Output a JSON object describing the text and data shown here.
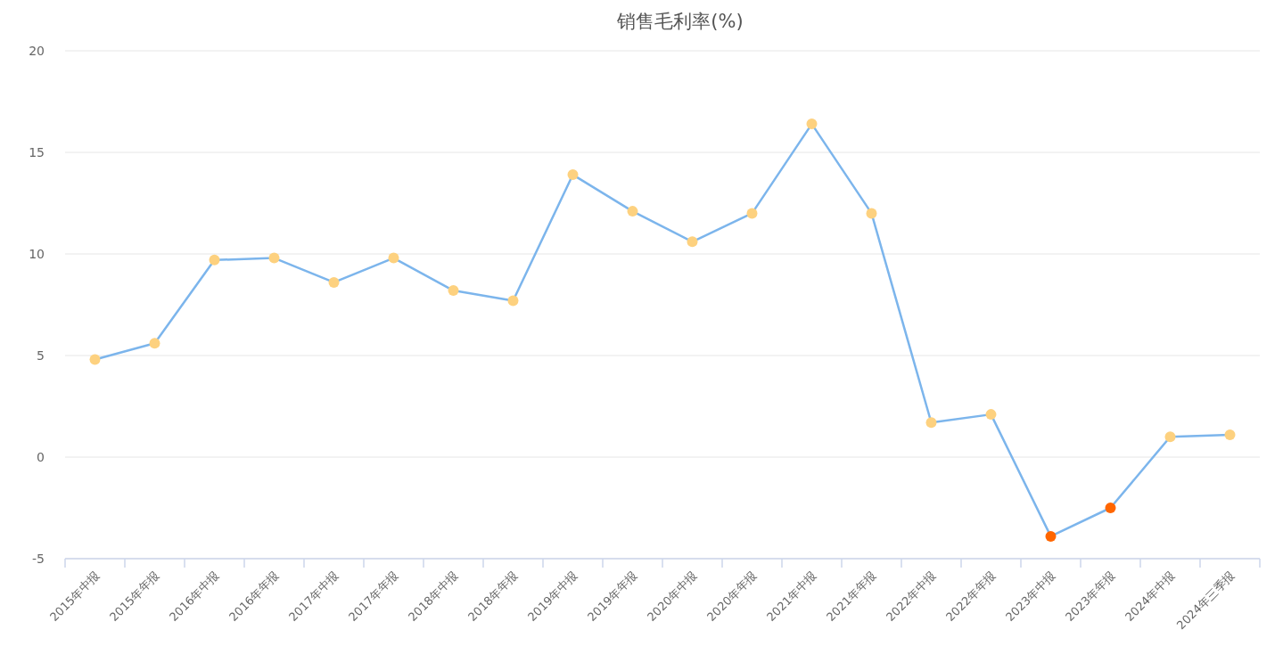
{
  "chart_data": {
    "type": "line",
    "title": "销售毛利率(%)",
    "categories": [
      "2015年中报",
      "2015年年报",
      "2016年中报",
      "2016年年报",
      "2017年中报",
      "2017年年报",
      "2018年中报",
      "2018年年报",
      "2019年中报",
      "2019年年报",
      "2020年中报",
      "2020年年报",
      "2021年中报",
      "2021年年报",
      "2022年中报",
      "2022年年报",
      "2023年中报",
      "2023年年报",
      "2024年中报",
      "2024年三季报"
    ],
    "series": [
      {
        "color": "#7cb5ec",
        "values": [
          4.8,
          5.6,
          9.7,
          9.8,
          8.6,
          9.8,
          8.2,
          7.7,
          13.9,
          12.1,
          10.6,
          12.0,
          16.4,
          12.0,
          1.7,
          2.1,
          -3.9,
          -2.5,
          1.0,
          1.1
        ],
        "colors": [
          "#fdd17f",
          "#fdd17f",
          "#fdd17f",
          "#fdd17f",
          "#fdd17f",
          "#fdd17f",
          "#fdd17f",
          "#fdd17f",
          "#fdd17f",
          "#fdd17f",
          "#fdd17f",
          "#fdd17f",
          "#fdd17f",
          "#fdd17f",
          "#fdd17f",
          "#fdd17f",
          "#ff6600",
          "#ff6600",
          "#fdd17f",
          "#fdd17f"
        ]
      }
    ],
    "ylim": [
      -5,
      20
    ],
    "yticks": [
      -5,
      0,
      5,
      10,
      15,
      20
    ],
    "grid": "y",
    "marker": "circle"
  }
}
